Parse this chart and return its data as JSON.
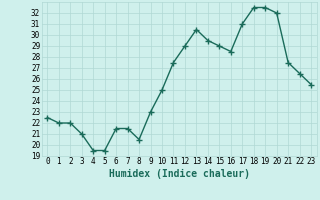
{
  "x": [
    0,
    1,
    2,
    3,
    4,
    5,
    6,
    7,
    8,
    9,
    10,
    11,
    12,
    13,
    14,
    15,
    16,
    17,
    18,
    19,
    20,
    21,
    22,
    23
  ],
  "y": [
    22.5,
    22.0,
    22.0,
    21.0,
    19.5,
    19.5,
    21.5,
    21.5,
    20.5,
    23.0,
    25.0,
    27.5,
    29.0,
    30.5,
    29.5,
    29.0,
    28.5,
    31.0,
    32.5,
    32.5,
    32.0,
    27.5,
    26.5,
    25.5
  ],
  "line_color": "#1a6b5a",
  "marker": "+",
  "bg_color": "#cff0ec",
  "grid_color": "#b0d8d4",
  "xlabel": "Humidex (Indice chaleur)",
  "ylim": [
    19,
    33
  ],
  "xlim": [
    -0.5,
    23.5
  ],
  "yticks": [
    19,
    20,
    21,
    22,
    23,
    24,
    25,
    26,
    27,
    28,
    29,
    30,
    31,
    32
  ],
  "xticks": [
    0,
    1,
    2,
    3,
    4,
    5,
    6,
    7,
    8,
    9,
    10,
    11,
    12,
    13,
    14,
    15,
    16,
    17,
    18,
    19,
    20,
    21,
    22,
    23
  ],
  "tick_fontsize": 5.5,
  "xlabel_fontsize": 7,
  "line_width": 1.0,
  "marker_size": 4
}
